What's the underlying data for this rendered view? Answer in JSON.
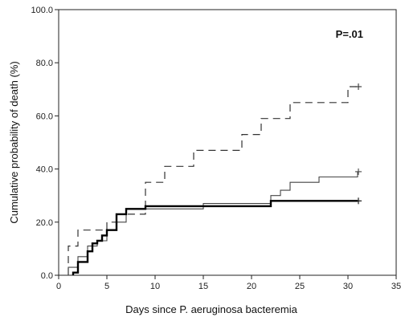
{
  "chart_data": {
    "type": "line",
    "title": "",
    "xlabel": "Days since P. aeruginosa bacteremia",
    "ylabel": "Cumulative probability of death (%)",
    "xlim": [
      0,
      35
    ],
    "ylim": [
      0,
      100
    ],
    "x_ticks": [
      0,
      5,
      10,
      15,
      20,
      25,
      30,
      35
    ],
    "x_tick_labels": [
      "0",
      "5",
      "10",
      "15",
      "20",
      "25",
      "30",
      "35"
    ],
    "y_ticks": [
      0,
      20,
      40,
      60,
      80,
      100
    ],
    "y_tick_labels": [
      "0.0",
      "20.0",
      "40.0",
      "60.0",
      "80.0",
      "100.0"
    ],
    "grid": false,
    "legend": "none",
    "annotation": "P=.01",
    "series": [
      {
        "style": "dashed",
        "color": "#333333",
        "end_marker": "+",
        "points": [
          [
            1,
            0
          ],
          [
            1,
            11
          ],
          [
            2,
            11
          ],
          [
            2,
            17
          ],
          [
            5,
            17
          ],
          [
            5,
            20
          ],
          [
            6,
            20
          ],
          [
            6,
            23
          ],
          [
            9,
            23
          ],
          [
            9,
            35
          ],
          [
            11,
            35
          ],
          [
            11,
            41
          ],
          [
            14,
            41
          ],
          [
            14,
            47
          ],
          [
            19,
            47
          ],
          [
            19,
            53
          ],
          [
            21,
            53
          ],
          [
            21,
            59
          ],
          [
            24,
            59
          ],
          [
            24,
            65
          ],
          [
            30,
            65
          ],
          [
            30,
            71
          ],
          [
            31,
            71
          ]
        ]
      },
      {
        "style": "solid-thin",
        "color": "#444444",
        "end_marker": "+",
        "points": [
          [
            1,
            0
          ],
          [
            1,
            3
          ],
          [
            2,
            3
          ],
          [
            2,
            7
          ],
          [
            3,
            7
          ],
          [
            3,
            11
          ],
          [
            4,
            11
          ],
          [
            4,
            13
          ],
          [
            5,
            13
          ],
          [
            5,
            17
          ],
          [
            6,
            17
          ],
          [
            6,
            20
          ],
          [
            7,
            20
          ],
          [
            7,
            25
          ],
          [
            15,
            25
          ],
          [
            15,
            27
          ],
          [
            22,
            27
          ],
          [
            22,
            30
          ],
          [
            23,
            30
          ],
          [
            23,
            32
          ],
          [
            24,
            32
          ],
          [
            24,
            35
          ],
          [
            27,
            35
          ],
          [
            27,
            37
          ],
          [
            31,
            37
          ],
          [
            31,
            39
          ]
        ]
      },
      {
        "style": "solid-thick",
        "color": "#000000",
        "end_marker": "+",
        "points": [
          [
            1.5,
            0
          ],
          [
            1.5,
            1
          ],
          [
            2,
            1
          ],
          [
            2,
            5
          ],
          [
            3,
            5
          ],
          [
            3,
            9
          ],
          [
            3.5,
            9
          ],
          [
            3.5,
            12
          ],
          [
            4,
            12
          ],
          [
            4,
            13
          ],
          [
            4.5,
            13
          ],
          [
            4.5,
            15
          ],
          [
            5,
            15
          ],
          [
            5,
            17
          ],
          [
            6,
            17
          ],
          [
            6,
            23
          ],
          [
            7,
            23
          ],
          [
            7,
            25
          ],
          [
            9,
            25
          ],
          [
            9,
            26
          ],
          [
            22,
            26
          ],
          [
            22,
            28
          ],
          [
            31,
            28
          ]
        ]
      }
    ]
  }
}
